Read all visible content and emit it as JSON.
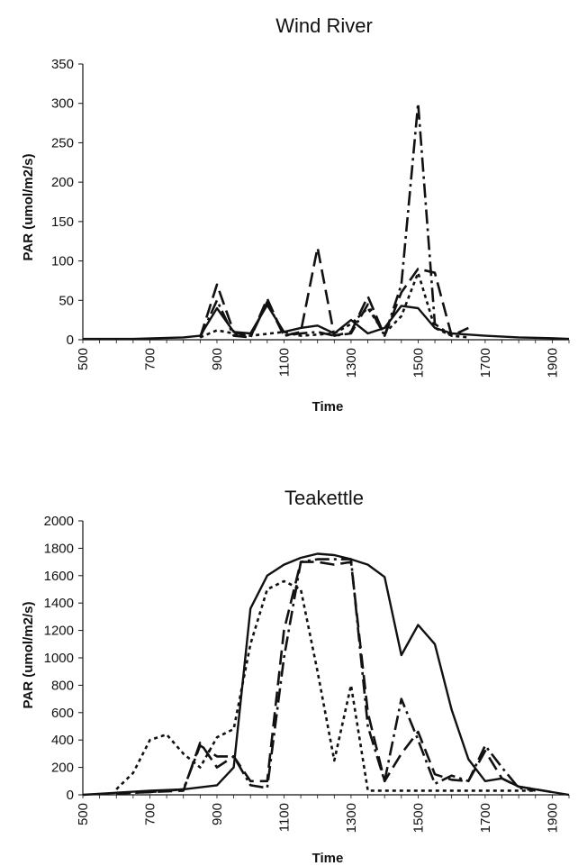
{
  "chart_data": [
    {
      "type": "line",
      "title": "Wind River",
      "xlabel": "Time",
      "ylabel": "PAR (umol/m2/s)",
      "xlim": [
        500,
        1950
      ],
      "ylim": [
        0,
        350
      ],
      "yticks": [
        0,
        50,
        100,
        150,
        200,
        250,
        300,
        350
      ],
      "xticks": [
        500,
        700,
        900,
        1100,
        1300,
        1500,
        1700,
        1900
      ],
      "grid": false,
      "series": [
        {
          "style": "solid",
          "points": [
            [
              500,
              1
            ],
            [
              650,
              1
            ],
            [
              800,
              3
            ],
            [
              850,
              5
            ],
            [
              900,
              40
            ],
            [
              950,
              10
            ],
            [
              1000,
              8
            ],
            [
              1050,
              44
            ],
            [
              1100,
              10
            ],
            [
              1150,
              15
            ],
            [
              1200,
              18
            ],
            [
              1250,
              8
            ],
            [
              1300,
              25
            ],
            [
              1350,
              8
            ],
            [
              1400,
              15
            ],
            [
              1450,
              43
            ],
            [
              1500,
              40
            ],
            [
              1550,
              15
            ],
            [
              1600,
              8
            ],
            [
              1700,
              5
            ],
            [
              1800,
              3
            ],
            [
              1900,
              2
            ],
            [
              1950,
              1
            ]
          ]
        },
        {
          "style": "long-dash",
          "points": [
            [
              850,
              3
            ],
            [
              900,
              70
            ],
            [
              950,
              10
            ],
            [
              1000,
              3
            ],
            [
              1050,
              52
            ],
            [
              1100,
              5
            ],
            [
              1150,
              10
            ],
            [
              1200,
              117
            ],
            [
              1250,
              5
            ],
            [
              1300,
              10
            ],
            [
              1350,
              55
            ],
            [
              1400,
              5
            ],
            [
              1450,
              60
            ],
            [
              1500,
              90
            ],
            [
              1550,
              85
            ],
            [
              1600,
              5
            ],
            [
              1650,
              15
            ]
          ]
        },
        {
          "style": "dash-dot",
          "points": [
            [
              850,
              3
            ],
            [
              900,
              50
            ],
            [
              950,
              5
            ],
            [
              1000,
              3
            ],
            [
              1050,
              48
            ],
            [
              1100,
              5
            ],
            [
              1150,
              8
            ],
            [
              1200,
              10
            ],
            [
              1250,
              5
            ],
            [
              1300,
              8
            ],
            [
              1350,
              45
            ],
            [
              1400,
              5
            ],
            [
              1450,
              70
            ],
            [
              1500,
              300
            ],
            [
              1550,
              20
            ],
            [
              1600,
              5
            ]
          ]
        },
        {
          "style": "dotted",
          "points": [
            [
              850,
              3
            ],
            [
              900,
              12
            ],
            [
              950,
              8
            ],
            [
              1000,
              5
            ],
            [
              1100,
              10
            ],
            [
              1150,
              5
            ],
            [
              1250,
              8
            ],
            [
              1300,
              20
            ],
            [
              1350,
              40
            ],
            [
              1400,
              8
            ],
            [
              1450,
              30
            ],
            [
              1500,
              85
            ],
            [
              1550,
              15
            ],
            [
              1600,
              5
            ],
            [
              1650,
              3
            ]
          ]
        }
      ]
    },
    {
      "type": "line",
      "title": "Teakettle",
      "xlabel": "Time",
      "ylabel": "PAR (umol/m2/s)",
      "xlim": [
        500,
        1950
      ],
      "ylim": [
        0,
        2000
      ],
      "yticks": [
        0,
        200,
        400,
        600,
        800,
        1000,
        1200,
        1400,
        1600,
        1800,
        2000
      ],
      "xticks": [
        500,
        700,
        900,
        1100,
        1300,
        1500,
        1700,
        1900
      ],
      "grid": false,
      "series": [
        {
          "style": "solid",
          "points": [
            [
              500,
              0
            ],
            [
              600,
              15
            ],
            [
              700,
              30
            ],
            [
              800,
              40
            ],
            [
              900,
              70
            ],
            [
              950,
              200
            ],
            [
              1000,
              1360
            ],
            [
              1050,
              1600
            ],
            [
              1100,
              1680
            ],
            [
              1150,
              1730
            ],
            [
              1200,
              1760
            ],
            [
              1250,
              1750
            ],
            [
              1300,
              1720
            ],
            [
              1350,
              1680
            ],
            [
              1400,
              1590
            ],
            [
              1450,
              1020
            ],
            [
              1500,
              1240
            ],
            [
              1550,
              1100
            ],
            [
              1600,
              620
            ],
            [
              1650,
              260
            ],
            [
              1700,
              100
            ],
            [
              1750,
              120
            ],
            [
              1800,
              60
            ],
            [
              1850,
              40
            ],
            [
              1900,
              20
            ],
            [
              1950,
              0
            ]
          ]
        },
        {
          "style": "long-dash",
          "points": [
            [
              600,
              10
            ],
            [
              700,
              20
            ],
            [
              800,
              30
            ],
            [
              850,
              380
            ],
            [
              900,
              200
            ],
            [
              950,
              280
            ],
            [
              1000,
              100
            ],
            [
              1050,
              100
            ],
            [
              1100,
              1200
            ],
            [
              1150,
              1700
            ],
            [
              1200,
              1700
            ],
            [
              1250,
              1680
            ],
            [
              1300,
              1700
            ],
            [
              1350,
              600
            ],
            [
              1400,
              100
            ],
            [
              1450,
              300
            ],
            [
              1500,
              460
            ],
            [
              1550,
              150
            ],
            [
              1600,
              110
            ],
            [
              1650,
              100
            ],
            [
              1700,
              320
            ],
            [
              1750,
              120
            ],
            [
              1800,
              60
            ],
            [
              1850,
              40
            ],
            [
              1900,
              20
            ]
          ]
        },
        {
          "style": "dash-dot",
          "points": [
            [
              600,
              10
            ],
            [
              700,
              20
            ],
            [
              800,
              40
            ],
            [
              850,
              360
            ],
            [
              900,
              280
            ],
            [
              950,
              280
            ],
            [
              1000,
              70
            ],
            [
              1050,
              50
            ],
            [
              1100,
              1000
            ],
            [
              1150,
              1700
            ],
            [
              1200,
              1720
            ],
            [
              1250,
              1720
            ],
            [
              1300,
              1720
            ],
            [
              1350,
              500
            ],
            [
              1400,
              100
            ],
            [
              1450,
              700
            ],
            [
              1500,
              400
            ],
            [
              1550,
              80
            ],
            [
              1600,
              140
            ],
            [
              1650,
              100
            ],
            [
              1700,
              360
            ],
            [
              1750,
              200
            ],
            [
              1800,
              50
            ],
            [
              1850,
              30
            ]
          ]
        },
        {
          "style": "dotted",
          "points": [
            [
              600,
              40
            ],
            [
              650,
              160
            ],
            [
              700,
              400
            ],
            [
              750,
              440
            ],
            [
              800,
              300
            ],
            [
              850,
              200
            ],
            [
              900,
              420
            ],
            [
              950,
              480
            ],
            [
              1000,
              1100
            ],
            [
              1050,
              1500
            ],
            [
              1100,
              1560
            ],
            [
              1150,
              1500
            ],
            [
              1200,
              900
            ],
            [
              1250,
              250
            ],
            [
              1300,
              800
            ],
            [
              1350,
              30
            ],
            [
              1450,
              30
            ],
            [
              1550,
              30
            ],
            [
              1650,
              30
            ],
            [
              1750,
              30
            ],
            [
              1850,
              30
            ]
          ]
        }
      ]
    }
  ]
}
